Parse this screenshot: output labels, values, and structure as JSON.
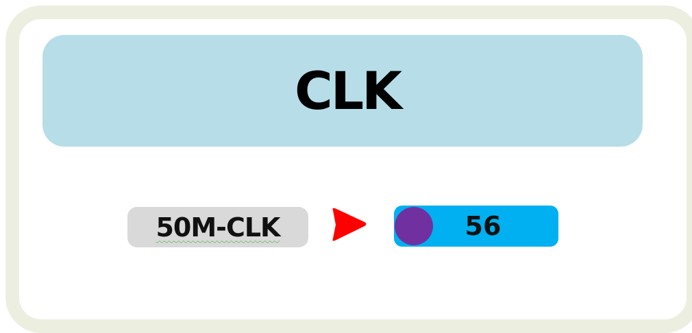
{
  "title": "CLK",
  "source": {
    "label": "50M-CLK"
  },
  "connector": {
    "icon": "play-arrow-icon",
    "color": "#ff0000"
  },
  "target": {
    "value": "56",
    "indicator_color": "#7030a0",
    "box_color": "#00b0f0"
  },
  "colors": {
    "title_box": "#b7dde8",
    "source_box": "#d9d9d9",
    "frame": "#ecefe0"
  }
}
